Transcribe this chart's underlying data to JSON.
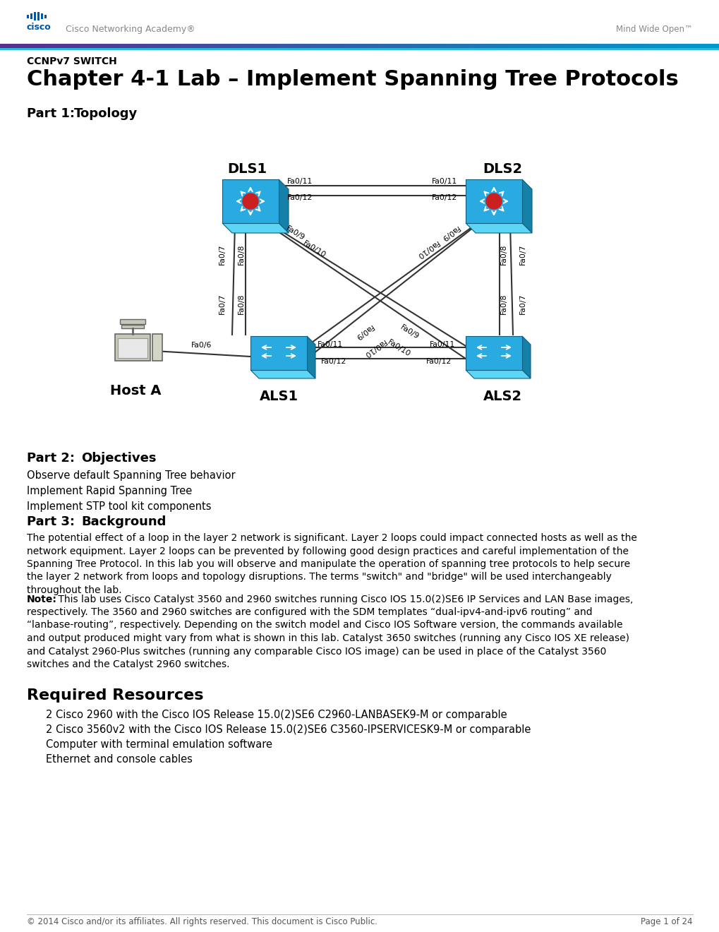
{
  "page_bg": "#ffffff",
  "cisco_text": "Cisco Networking Academy®",
  "mind_wide_open": "Mind Wide Open™",
  "subtitle": "CCNPv7 SWITCH",
  "title": "Chapter 4-1 Lab – Implement Spanning Tree Protocols",
  "part1_label": "Part 1:",
  "part1_title": "Topology",
  "part2_label": "Part 2:",
  "part2_title": "Objectives",
  "part2_items": [
    "Observe default Spanning Tree behavior",
    "Implement Rapid Spanning Tree",
    "Implement STP tool kit components"
  ],
  "part3_label": "Part 3:",
  "part3_title": "Background",
  "part3_body": "The potential effect of a loop in the layer 2 network is significant. Layer 2 loops could impact connected hosts as well as the\nnetwork equipment. Layer 2 loops can be prevented by following good design practices and careful implementation of the\nSpanning Tree Protocol. In this lab you will observe and manipulate the operation of spanning tree protocols to help secure\nthe layer 2 network from loops and topology disruptions. The terms \"switch\" and \"bridge\" will be used interchangeably\nthroughout the lab.",
  "note_label": "Note:",
  "note_body1": " This lab uses Cisco Catalyst 3560 and 2960 switches running Cisco IOS 15.0(2)SE6 IP Services and LAN Base images,",
  "note_body_rest": "respectively. The 3560 and 2960 switches are configured with the SDM templates “dual-ipv4-and-ipv6 routing” and\n“lanbase-routing”, respectively. Depending on the switch model and Cisco IOS Software version, the commands available\nand output produced might vary from what is shown in this lab. Catalyst 3650 switches (running any Cisco IOS XE release)\nand Catalyst 2960-Plus switches (running any comparable Cisco IOS image) can be used in place of the Catalyst 3560\nswitches and the Catalyst 2960 switches.",
  "required_label": "Required Resources",
  "required_items": [
    "2 Cisco 2960 with the Cisco IOS Release 15.0(2)SE6 C2960-LANBASEK9-M or comparable",
    "2 Cisco 3560v2 with the Cisco IOS Release 15.0(2)SE6 C3560-IPSERVICESK9-M or comparable",
    "Computer with terminal emulation software",
    "Ethernet and console cables"
  ],
  "footer_text": "© 2014 Cisco and/or its affiliates. All rights reserved. This document is Cisco Public.",
  "footer_page": "Page 1 of 24",
  "switch_blue": "#29ABE2",
  "switch_light": "#5cd8f5",
  "switch_dark": "#1a7aaa",
  "line_color": "#333333"
}
